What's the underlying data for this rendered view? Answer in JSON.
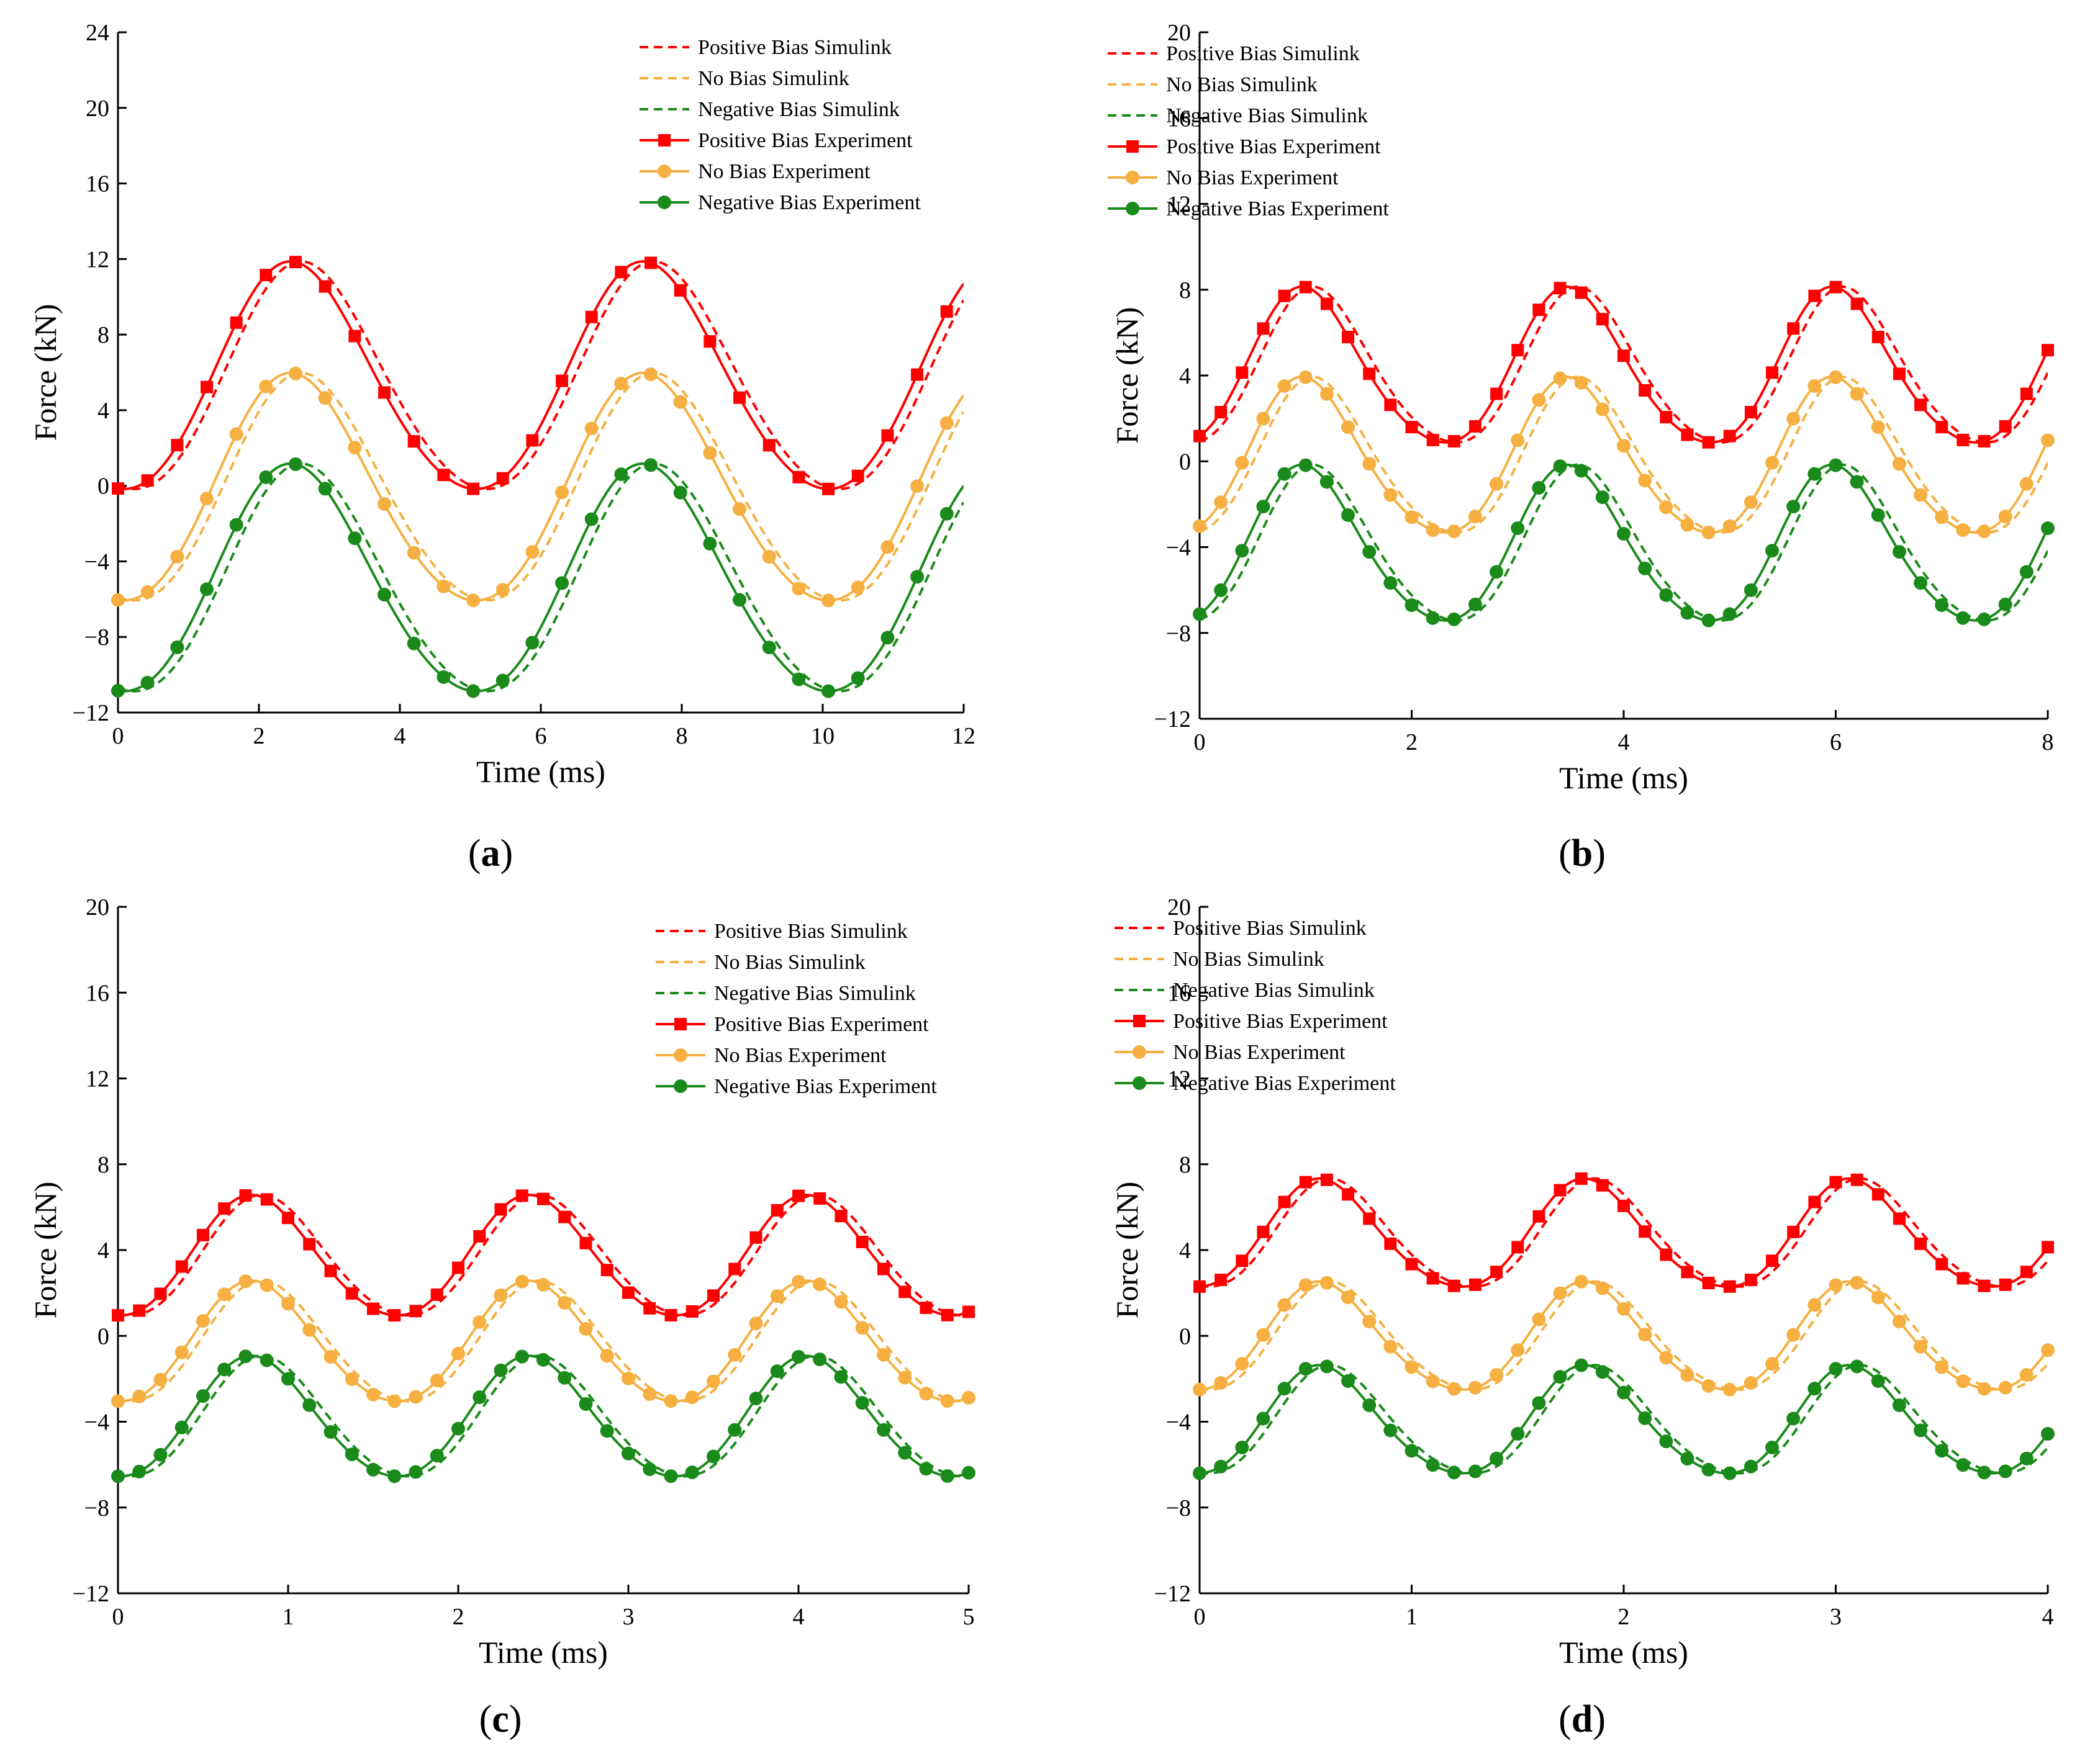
{
  "legend": [
    {
      "key": "pos_sim",
      "label": "Positive Bias Simulink",
      "color": "#ff0000",
      "style": "dashed",
      "marker": "none"
    },
    {
      "key": "no_sim",
      "label": "No Bias Simulink",
      "color": "#f5b041",
      "style": "dashed",
      "marker": "none"
    },
    {
      "key": "neg_sim",
      "label": "Negative Bias Simulink",
      "color": "#1a8a1a",
      "style": "dashed",
      "marker": "none"
    },
    {
      "key": "pos_exp",
      "label": "Positive Bias Experiment",
      "color": "#ff0000",
      "style": "solid",
      "marker": "square"
    },
    {
      "key": "no_exp",
      "label": "No Bias Experiment",
      "color": "#f5b041",
      "style": "solid",
      "marker": "circle"
    },
    {
      "key": "neg_exp",
      "label": "Negative Bias Experiment",
      "color": "#1a8a1a",
      "style": "solid",
      "marker": "circle"
    }
  ],
  "chart_data": [
    {
      "id": "a",
      "type": "line",
      "panel_label": "a",
      "xlabel": "Time (ms)",
      "ylabel": "Force (kN)",
      "xlim": [
        0,
        12
      ],
      "ylim": [
        -12,
        24
      ],
      "xticks": [
        0,
        2,
        4,
        6,
        8,
        10,
        12
      ],
      "yticks": [
        -12,
        -8,
        -4,
        0,
        4,
        8,
        12,
        16,
        20,
        24
      ],
      "legend_position": "top-right",
      "period": 5.0,
      "amplitude": 6.0,
      "mean_levels": {
        "positive": 5.5,
        "none": -0.4,
        "negative": -5.2
      },
      "peak_time": 2.5,
      "sim_lag": 0.15,
      "marker_step": 0.42,
      "harmonic": 0.6
    },
    {
      "id": "b",
      "type": "line",
      "panel_label": "b",
      "xlabel": "Time (ms)",
      "ylabel": "Force (kN)",
      "xlim": [
        0,
        8
      ],
      "ylim": [
        -12,
        20
      ],
      "xticks": [
        0,
        2,
        4,
        6,
        8
      ],
      "yticks": [
        -12,
        -8,
        -4,
        0,
        4,
        8,
        12,
        16,
        20
      ],
      "legend_position": "top-right",
      "period": 2.5,
      "amplitude": 3.6,
      "mean_levels": {
        "positive": 4.2,
        "none": 0.0,
        "negative": -4.1
      },
      "peak_time": 1.0,
      "sim_lag": 0.1,
      "marker_step": 0.2,
      "harmonic": 0.9
    },
    {
      "id": "c",
      "type": "line",
      "panel_label": "c",
      "xlabel": "Time (ms)",
      "ylabel": "Force (kN)",
      "xlim": [
        0,
        5
      ],
      "ylim": [
        -12,
        20
      ],
      "xticks": [
        0,
        1,
        2,
        3,
        4,
        5
      ],
      "yticks": [
        -12,
        -8,
        -4,
        0,
        4,
        8,
        12,
        16,
        20
      ],
      "legend_position": "top-right",
      "period": 1.63,
      "amplitude": 2.8,
      "mean_levels": {
        "positive": 3.6,
        "none": -0.4,
        "negative": -3.9
      },
      "peak_time": 0.8,
      "sim_lag": 0.06,
      "marker_step": 0.125,
      "harmonic": 0.6
    },
    {
      "id": "d",
      "type": "line",
      "panel_label": "d",
      "xlabel": "Time (ms)",
      "ylabel": "Force (kN)",
      "xlim": [
        0,
        4
      ],
      "ylim": [
        -12,
        20
      ],
      "xticks": [
        0,
        1,
        2,
        3,
        4
      ],
      "yticks": [
        -12,
        -8,
        -4,
        0,
        4,
        8,
        12,
        16,
        20
      ],
      "legend_position": "top-right",
      "period": 1.25,
      "amplitude": 2.5,
      "mean_levels": {
        "positive": 4.6,
        "none": -0.2,
        "negative": -4.1
      },
      "peak_time": 0.58,
      "sim_lag": 0.05,
      "marker_step": 0.1,
      "harmonic": 0.9
    }
  ]
}
